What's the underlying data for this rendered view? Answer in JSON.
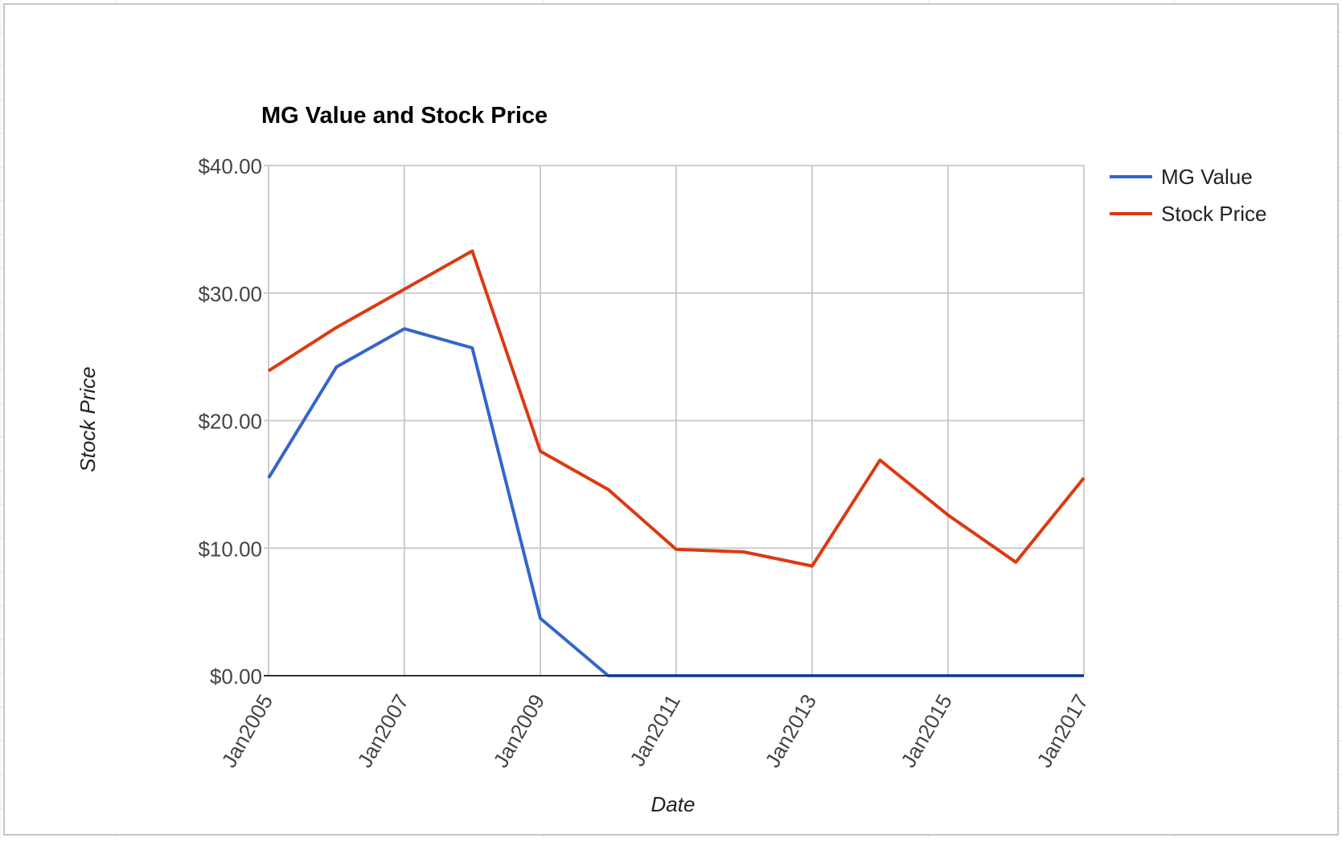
{
  "chart_data": {
    "type": "line",
    "title": "MG Value and Stock Price",
    "xlabel": "Date",
    "ylabel": "Stock Price",
    "x": [
      "2005-01-01",
      "2006-01-01",
      "2007-01-01",
      "2008-01-01",
      "2009-01-01",
      "2010-01-01",
      "2011-01-01",
      "2012-01-01",
      "2013-01-01",
      "2014-01-01",
      "2015-01-01",
      "2016-01-01",
      "2017-01-01"
    ],
    "x_ticks": [
      "2005-01-01",
      "2007-01-01",
      "2009-01-01",
      "2011-01-01",
      "2013-01-01",
      "2015-01-01",
      "2017-01-01"
    ],
    "x_tick_labels": [
      "Jan2005",
      "Jan2007",
      "Jan2009",
      "Jan2011",
      "Jan2013",
      "Jan2015",
      "Jan2017"
    ],
    "xlim": [
      "2005-01-01",
      "2017-01-01"
    ],
    "y_ticks": [
      0,
      10,
      20,
      30,
      40
    ],
    "y_tick_labels": [
      "$0.00",
      "$10.00",
      "$20.00",
      "$30.00",
      "$40.00"
    ],
    "ylim": [
      0,
      40
    ],
    "grid": true,
    "legend": "right",
    "series": [
      {
        "name": "MG Value",
        "color": "#3366cc",
        "values": [
          15.5,
          24.2,
          27.2,
          25.7,
          4.5,
          0,
          0,
          0,
          0,
          0,
          0,
          0,
          0
        ]
      },
      {
        "name": "Stock Price",
        "color": "#dc3912",
        "values": [
          23.9,
          27.3,
          30.3,
          33.3,
          17.6,
          14.6,
          9.9,
          9.7,
          8.6,
          16.9,
          12.6,
          8.9,
          15.5
        ]
      }
    ]
  }
}
